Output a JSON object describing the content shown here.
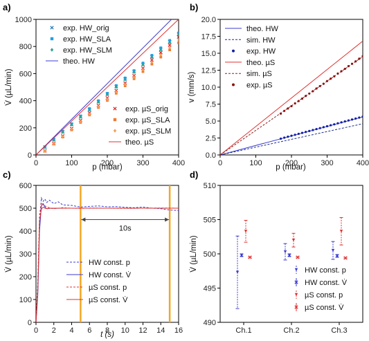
{
  "chart_data": [
    {
      "panel": "a)",
      "type": "scatter",
      "xlabel": "p (mbar)",
      "ylabel": "V̇ (µL/min)",
      "xlim": [
        0,
        400
      ],
      "ylim": [
        0,
        1000
      ],
      "xticks": [
        0,
        100,
        200,
        300,
        400
      ],
      "yticks": [
        0,
        200,
        400,
        600,
        800,
        1000
      ],
      "grid": false,
      "series": [
        {
          "name": "exp. HW_orig",
          "kind": "marker",
          "marker": "x",
          "color": "#1f77b4",
          "x": [
            25,
            50,
            75,
            100,
            125,
            150,
            175,
            200,
            225,
            250,
            275,
            300,
            325,
            350,
            375,
            400
          ],
          "y": [
            58,
            112,
            170,
            225,
            282,
            335,
            392,
            448,
            505,
            560,
            615,
            668,
            725,
            780,
            835,
            890
          ]
        },
        {
          "name": "exp. HW_SLA",
          "kind": "marker",
          "marker": "square",
          "color": "#1f9fe8",
          "x": [
            25,
            50,
            75,
            100,
            125,
            150,
            175,
            200,
            225,
            250,
            275,
            300,
            325,
            350,
            375,
            400
          ],
          "y": [
            60,
            115,
            175,
            230,
            288,
            342,
            400,
            455,
            512,
            568,
            622,
            678,
            735,
            790,
            845,
            900
          ]
        },
        {
          "name": "exp. HW_SLM",
          "kind": "marker",
          "marker": "diamond",
          "color": "#2ca58d",
          "x": [
            25,
            50,
            75,
            100,
            125,
            150,
            175,
            200,
            225,
            250,
            275,
            300,
            325,
            350,
            375,
            400
          ],
          "y": [
            57,
            110,
            168,
            222,
            280,
            332,
            390,
            445,
            500,
            555,
            610,
            665,
            720,
            775,
            830,
            885
          ]
        },
        {
          "name": "theo. HW",
          "kind": "line",
          "color": "#3b3bd1",
          "x": [
            0,
            380
          ],
          "y": [
            0,
            1000
          ]
        },
        {
          "name": "exp. µS_orig",
          "kind": "marker",
          "marker": "x",
          "color": "#d62728",
          "x": [
            25,
            50,
            75,
            100,
            125,
            150,
            175,
            200,
            225,
            250,
            275,
            300,
            325,
            350,
            375,
            400
          ],
          "y": [
            30,
            85,
            140,
            195,
            255,
            310,
            365,
            420,
            475,
            530,
            585,
            640,
            700,
            755,
            810,
            870
          ]
        },
        {
          "name": "exp. µS_SLA",
          "kind": "marker",
          "marker": "square",
          "color": "#f07a2e",
          "x": [
            25,
            50,
            75,
            100,
            125,
            150,
            175,
            200,
            225,
            250,
            275,
            300,
            325,
            350,
            375,
            400
          ],
          "y": [
            28,
            80,
            132,
            185,
            240,
            295,
            350,
            402,
            455,
            510,
            562,
            615,
            670,
            722,
            775,
            828
          ]
        },
        {
          "name": "exp. µS_SLM",
          "kind": "marker",
          "marker": "diamond",
          "color": "#f5a05a",
          "x": [
            25,
            50,
            75,
            100,
            125,
            150,
            175,
            200,
            225,
            250,
            275,
            300,
            325,
            350,
            375,
            400
          ],
          "y": [
            29,
            82,
            136,
            190,
            246,
            300,
            356,
            410,
            465,
            520,
            574,
            628,
            684,
            738,
            792,
            848
          ]
        },
        {
          "name": "theo. µS",
          "kind": "line",
          "color": "#e03030",
          "x": [
            0,
            400
          ],
          "y": [
            0,
            1000
          ]
        }
      ]
    },
    {
      "panel": "b)",
      "type": "line",
      "xlabel": "p (mbar)",
      "ylabel": "v (mm/s)",
      "xlim": [
        0,
        400
      ],
      "ylim": [
        0,
        20
      ],
      "xticks": [
        0,
        100,
        200,
        300,
        400
      ],
      "yticks": [
        0.0,
        2.5,
        5.0,
        7.5,
        10.0,
        12.5,
        15.0,
        17.5,
        20.0
      ],
      "ytick_labels": [
        "0.0",
        "2.5",
        "5.0",
        "7.5",
        "10.0",
        "12.5",
        "15.0",
        "17.5",
        "20.0"
      ],
      "grid": false,
      "series": [
        {
          "name": "theo. HW",
          "kind": "line",
          "style": "solid",
          "color": "#3b3bd1",
          "x": [
            0,
            400
          ],
          "y": [
            0,
            5.6
          ]
        },
        {
          "name": "sim. HW",
          "kind": "line",
          "style": "dashed",
          "color": "#1a2a8a",
          "x": [
            0,
            400
          ],
          "y": [
            0,
            4.6
          ]
        },
        {
          "name": "exp. HW",
          "kind": "marker",
          "marker": "dot",
          "color": "#1020a0",
          "x": [
            170,
            180,
            190,
            200,
            210,
            220,
            230,
            240,
            250,
            260,
            270,
            280,
            290,
            300,
            310,
            320,
            330,
            340,
            350,
            360,
            370,
            380,
            390,
            400
          ],
          "y": [
            2.4,
            2.55,
            2.69,
            2.83,
            2.97,
            3.11,
            3.25,
            3.39,
            3.53,
            3.67,
            3.82,
            3.96,
            4.1,
            4.24,
            4.38,
            4.52,
            4.67,
            4.81,
            4.95,
            5.09,
            5.23,
            5.37,
            5.51,
            5.65
          ]
        },
        {
          "name": "theo. µS",
          "kind": "line",
          "style": "solid",
          "color": "#e03030",
          "x": [
            0,
            400
          ],
          "y": [
            0,
            16.8
          ]
        },
        {
          "name": "sim. µS",
          "kind": "line",
          "style": "dashed",
          "color": "#8b1a1a",
          "x": [
            0,
            400
          ],
          "y": [
            0,
            14.5
          ]
        },
        {
          "name": "exp. µS",
          "kind": "marker",
          "marker": "dot",
          "color": "#8b1010",
          "x": [
            170,
            180,
            190,
            200,
            210,
            220,
            230,
            240,
            250,
            260,
            270,
            280,
            290,
            300,
            310,
            320,
            330,
            340,
            350,
            360,
            370,
            380,
            390,
            400
          ],
          "y": [
            6.1,
            6.5,
            6.85,
            7.2,
            7.6,
            7.95,
            8.3,
            8.7,
            9.05,
            9.4,
            9.8,
            10.15,
            10.5,
            10.9,
            11.25,
            11.6,
            12.0,
            12.35,
            12.7,
            13.1,
            13.45,
            13.8,
            14.2,
            14.55
          ]
        }
      ]
    },
    {
      "panel": "c)",
      "type": "line",
      "xlabel": "t (s)",
      "ylabel": "V̇ (µL/min)",
      "xlim": [
        0,
        16
      ],
      "ylim": [
        0,
        600
      ],
      "xticks": [
        0,
        2,
        4,
        6,
        8,
        10,
        12,
        14,
        16
      ],
      "yticks": [
        0,
        100,
        200,
        300,
        400,
        500,
        600
      ],
      "grid": false,
      "markers_vertical": [
        5,
        15
      ],
      "marker_color": "#f5a623",
      "annotation": {
        "text": "10s",
        "from": 5,
        "to": 15,
        "y": 450
      },
      "series": [
        {
          "name": "HW const. p",
          "kind": "line",
          "style": "dashed",
          "color": "#3b3bd1",
          "x": [
            0,
            0.2,
            0.4,
            0.6,
            0.8,
            1.0,
            1.2,
            1.5,
            2,
            2.5,
            3,
            4,
            5,
            6,
            7,
            8,
            9,
            10,
            11,
            12,
            13,
            14,
            15,
            16
          ],
          "y": [
            0,
            150,
            420,
            545,
            530,
            540,
            525,
            535,
            520,
            528,
            515,
            512,
            505,
            508,
            510,
            506,
            507,
            504,
            502,
            505,
            500,
            498,
            492,
            490
          ]
        },
        {
          "name": "HW const. V̇",
          "kind": "line",
          "style": "solid",
          "color": "#3b3bd1",
          "x": [
            0,
            0.2,
            0.4,
            0.6,
            0.8,
            1.0,
            1.2,
            1.5,
            2,
            3,
            4,
            5,
            6,
            8,
            10,
            12,
            14,
            16
          ],
          "y": [
            0,
            120,
            400,
            510,
            520,
            505,
            498,
            500,
            499,
            500,
            500,
            500,
            500,
            500,
            500,
            500,
            500,
            500
          ]
        },
        {
          "name": "µS const. p",
          "kind": "line",
          "style": "dashed",
          "color": "#e03030",
          "x": [
            0,
            0.2,
            0.4,
            0.6,
            0.8,
            1.0,
            1.3,
            1.6,
            2,
            3,
            4,
            5,
            6,
            8,
            10,
            12,
            14,
            16
          ],
          "y": [
            0,
            180,
            470,
            525,
            515,
            510,
            505,
            500,
            498,
            502,
            500,
            499,
            501,
            500,
            499,
            500,
            501,
            500
          ]
        },
        {
          "name": "µS const. V̇",
          "kind": "line",
          "style": "solid",
          "color": "#e03030",
          "x": [
            0,
            0.2,
            0.4,
            0.6,
            0.8,
            1.0,
            1.3,
            1.6,
            2,
            3,
            4,
            6,
            8,
            10,
            12,
            14,
            16
          ],
          "y": [
            0,
            140,
            440,
            495,
            505,
            500,
            498,
            500,
            500,
            500,
            500,
            500,
            500,
            500,
            500,
            500,
            500
          ]
        }
      ]
    },
    {
      "panel": "d)",
      "type": "scatter",
      "xlabel": "",
      "ylabel": "V̇ (µL/min)",
      "categories": [
        "Ch.1",
        "Ch.2",
        "Ch.3"
      ],
      "ylim": [
        490,
        510
      ],
      "yticks": [
        490,
        495,
        500,
        505,
        510
      ],
      "grid": false,
      "series": [
        {
          "name": "HW const. p",
          "color": "#3b3bd1",
          "style": "dashed",
          "marker": "triangle-down",
          "values": [
            497.3,
            500.3,
            500.5
          ],
          "err": [
            5.3,
            1.2,
            1.3
          ]
        },
        {
          "name": "HW const. V̇",
          "color": "#3b3bd1",
          "style": "solid",
          "marker": "x",
          "values": [
            499.8,
            499.8,
            499.7
          ],
          "err": [
            0.2,
            0.2,
            0.2
          ]
        },
        {
          "name": "µS const. p",
          "color": "#e03030",
          "style": "dashed",
          "marker": "triangle-down",
          "values": [
            503.3,
            502.0,
            503.3
          ],
          "err": [
            1.6,
            1.0,
            2.0
          ]
        },
        {
          "name": "µS const. V̇",
          "color": "#e03030",
          "style": "solid",
          "marker": "x",
          "values": [
            499.5,
            499.5,
            499.4
          ],
          "err": [
            0.1,
            0.1,
            0.1
          ]
        }
      ]
    }
  ]
}
